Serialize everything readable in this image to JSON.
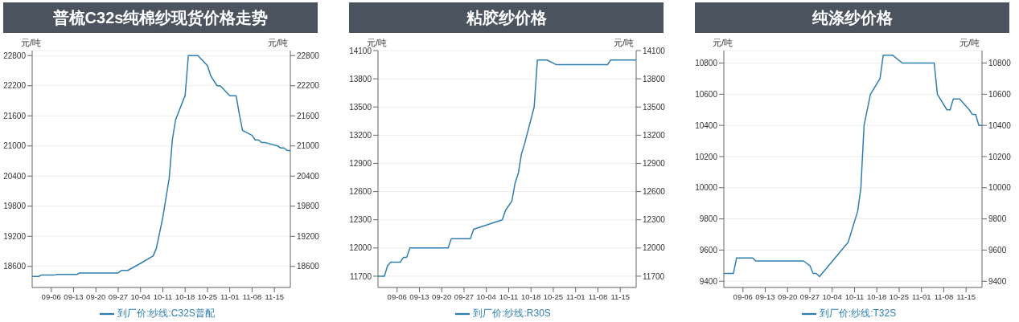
{
  "chart_data": [
    {
      "type": "line",
      "title": "普梳C32s纯棉纱现货价格走势",
      "ylabel": "元/吨",
      "y2label": "元/吨",
      "x": [
        "--08-31",
        "--09-02",
        "--09-03",
        "--09-07",
        "--09-08",
        "--09-14",
        "--09-15",
        "--09-27",
        "--09-28",
        "--09-30",
        "--10-04",
        "--10-08",
        "--10-09",
        "--10-11",
        "--10-13",
        "--10-14",
        "--10-15",
        "--10-18",
        "--10-19",
        "--10-22",
        "--10-25",
        "--10-26",
        "--10-28",
        "--10-29",
        "--11-01",
        "--11-03",
        "--11-04",
        "--11-05",
        "--11-08",
        "--11-09",
        "--11-10",
        "--11-11",
        "--11-12",
        "--11-16",
        "--11-17",
        "--11-18",
        "--11-19",
        "--11-20"
      ],
      "series": [
        {
          "name": "到厂价:纱线:C32S普配",
          "color": "#2e7fb0",
          "axis": "y",
          "values": [
            18400,
            18400,
            18430,
            18430,
            18440,
            18440,
            18470,
            18470,
            18520,
            18520,
            18660,
            18810,
            18970,
            19580,
            20360,
            21130,
            21520,
            22010,
            22800,
            22800,
            22600,
            22400,
            22200,
            22200,
            22000,
            22000,
            21630,
            21310,
            21210,
            21120,
            21120,
            21070,
            21070,
            21000,
            20960,
            20960,
            20910,
            20910
          ]
        }
      ],
      "xlim": [
        "--08-31",
        "--11-20"
      ],
      "xticks": [
        {
          "value": "--09-06",
          "label": "09-06"
        },
        {
          "value": "--09-13",
          "label": "09-13"
        },
        {
          "value": "--09-20",
          "label": "09-20"
        },
        {
          "value": "--09-27",
          "label": "09-27"
        },
        {
          "value": "--10-04",
          "label": "10-04"
        },
        {
          "value": "--10-11",
          "label": "10-11"
        },
        {
          "value": "--10-18",
          "label": "10-18"
        },
        {
          "value": "--10-25",
          "label": "10-25"
        },
        {
          "value": "--11-01",
          "label": "11-01"
        },
        {
          "value": "--11-08",
          "label": "11-08"
        },
        {
          "value": "--11-15",
          "label": "11-15"
        }
      ],
      "ylim": [
        18180,
        22900
      ],
      "yticks": [
        18600,
        19200,
        19800,
        20400,
        21000,
        21600,
        22200,
        22800
      ],
      "y2lim": [
        18180,
        22900
      ],
      "y2ticks": [
        18600,
        19200,
        19800,
        20400,
        21000,
        21600,
        22200,
        22800
      ],
      "grid": "y",
      "legend": "bottom",
      "marker": "none",
      "line_style": "solid"
    },
    {
      "type": "line",
      "title": "粘胶纱价格",
      "ylabel": "元/吨",
      "y2label": "元/吨",
      "x": [
        "--08-31",
        "--09-02",
        "--09-03",
        "--09-04",
        "--09-07",
        "--09-08",
        "--09-09",
        "--09-10",
        "--09-22",
        "--09-23",
        "--09-29",
        "--09-30",
        "--10-09",
        "--10-10",
        "--10-12",
        "--10-13",
        "--10-14",
        "--10-15",
        "--10-16",
        "--10-19",
        "--10-20",
        "--10-23",
        "--10-26",
        "--11-11",
        "--11-12",
        "--11-20"
      ],
      "series": [
        {
          "name": "到厂价:纱线:R30S",
          "color": "#2e7fb0",
          "axis": "y",
          "values": [
            11700,
            11700,
            11810,
            11850,
            11850,
            11900,
            11900,
            12000,
            12000,
            12100,
            12100,
            12200,
            12300,
            12400,
            12500,
            12690,
            12790,
            13000,
            13110,
            13500,
            14000,
            14000,
            13950,
            13950,
            14000,
            14000
          ]
        }
      ],
      "xlim": [
        "--08-31",
        "--11-20"
      ],
      "xticks": [
        {
          "value": "--09-06",
          "label": "09-06"
        },
        {
          "value": "--09-13",
          "label": "09-13"
        },
        {
          "value": "--09-20",
          "label": "09-20"
        },
        {
          "value": "--09-27",
          "label": "09-27"
        },
        {
          "value": "--10-04",
          "label": "10-04"
        },
        {
          "value": "--10-11",
          "label": "10-11"
        },
        {
          "value": "--10-18",
          "label": "10-18"
        },
        {
          "value": "--10-25",
          "label": "10-25"
        },
        {
          "value": "--11-01",
          "label": "11-01"
        },
        {
          "value": "--11-08",
          "label": "11-08"
        },
        {
          "value": "--11-15",
          "label": "11-15"
        }
      ],
      "ylim": [
        11580,
        14100
      ],
      "yticks": [
        11700,
        12000,
        12300,
        12600,
        12900,
        13200,
        13500,
        13800,
        14100
      ],
      "y2lim": [
        11580,
        14100
      ],
      "y2ticks": [
        11700,
        12000,
        12300,
        12600,
        12900,
        13200,
        13500,
        13800,
        14100
      ],
      "grid": "y",
      "legend": "bottom",
      "marker": "none",
      "line_style": "solid"
    },
    {
      "type": "line",
      "title": "纯涤纱价格",
      "ylabel": "元/吨",
      "y2label": "元/吨",
      "x": [
        "--08-31",
        "--09-03",
        "--09-04",
        "--09-09",
        "--09-10",
        "--09-25",
        "--09-27",
        "--09-28",
        "--09-29",
        "--09-30",
        "--10-09",
        "--10-12",
        "--10-13",
        "--10-14",
        "--10-16",
        "--10-19",
        "--10-20",
        "--10-23",
        "--10-26",
        "--11-05",
        "--11-06",
        "--11-09",
        "--11-10",
        "--11-11",
        "--11-13",
        "--11-16",
        "--11-17",
        "--11-18",
        "--11-19",
        "--11-20"
      ],
      "series": [
        {
          "name": "到厂价:纱线:T32S",
          "color": "#2e7fb0",
          "axis": "y",
          "values": [
            9450,
            9450,
            9550,
            9550,
            9530,
            9530,
            9500,
            9450,
            9450,
            9430,
            9650,
            9850,
            10000,
            10400,
            10600,
            10700,
            10850,
            10850,
            10800,
            10800,
            10600,
            10500,
            10500,
            10570,
            10570,
            10500,
            10470,
            10470,
            10400,
            10400
          ]
        }
      ],
      "xlim": [
        "--08-31",
        "--11-20"
      ],
      "xticks": [
        {
          "value": "--09-06",
          "label": "09-06"
        },
        {
          "value": "--09-13",
          "label": "09-13"
        },
        {
          "value": "--09-20",
          "label": "09-20"
        },
        {
          "value": "--09-27",
          "label": "09-27"
        },
        {
          "value": "--10-04",
          "label": "10-04"
        },
        {
          "value": "--10-11",
          "label": "10-11"
        },
        {
          "value": "--10-18",
          "label": "10-18"
        },
        {
          "value": "--10-25",
          "label": "10-25"
        },
        {
          "value": "--11-01",
          "label": "11-01"
        },
        {
          "value": "--11-08",
          "label": "11-08"
        },
        {
          "value": "--11-15",
          "label": "11-15"
        }
      ],
      "ylim": [
        9360,
        10880
      ],
      "yticks": [
        9400,
        9600,
        9800,
        10000,
        10200,
        10400,
        10600,
        10800
      ],
      "y2lim": [
        9360,
        10880
      ],
      "y2ticks": [
        9400,
        9600,
        9800,
        10000,
        10200,
        10400,
        10600,
        10800
      ],
      "grid": "y",
      "legend": "bottom",
      "marker": "none",
      "line_style": "solid"
    }
  ]
}
